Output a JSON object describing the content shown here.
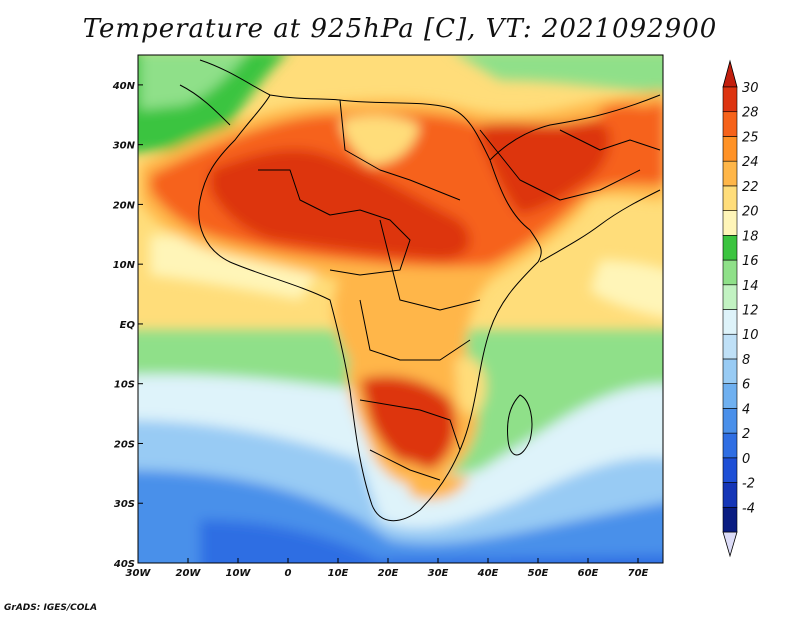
{
  "title": "Temperature at 925hPa [C], VT: 2021092900",
  "credit": "GrADS: IGES/COLA",
  "map": {
    "lon_range": [
      -30,
      75
    ],
    "lat_range": [
      -40,
      45
    ],
    "lon_ticks": [
      {
        "value": -30,
        "label": "30W"
      },
      {
        "value": -20,
        "label": "20W"
      },
      {
        "value": -10,
        "label": "10W"
      },
      {
        "value": 0,
        "label": "0"
      },
      {
        "value": 10,
        "label": "10E"
      },
      {
        "value": 20,
        "label": "20E"
      },
      {
        "value": 30,
        "label": "30E"
      },
      {
        "value": 40,
        "label": "40E"
      },
      {
        "value": 50,
        "label": "50E"
      },
      {
        "value": 60,
        "label": "60E"
      },
      {
        "value": 70,
        "label": "70E"
      }
    ],
    "lat_ticks": [
      {
        "value": 40,
        "label": "40N"
      },
      {
        "value": 30,
        "label": "30N"
      },
      {
        "value": 20,
        "label": "20N"
      },
      {
        "value": 10,
        "label": "10N"
      },
      {
        "value": 0,
        "label": "EQ"
      },
      {
        "value": -10,
        "label": "10S"
      },
      {
        "value": -20,
        "label": "20S"
      },
      {
        "value": -30,
        "label": "30S"
      },
      {
        "value": -40,
        "label": "40S"
      }
    ]
  },
  "colorbar": {
    "levels": [
      {
        "label": "-4",
        "color": "#0a1d82"
      },
      {
        "label": "-2",
        "color": "#1536b7"
      },
      {
        "label": "0",
        "color": "#1e4fd6"
      },
      {
        "label": "2",
        "color": "#2f6ee3"
      },
      {
        "label": "4",
        "color": "#4a90ea"
      },
      {
        "label": "6",
        "color": "#6fb0f0"
      },
      {
        "label": "8",
        "color": "#98cbf4"
      },
      {
        "label": "10",
        "color": "#bfe0f7"
      },
      {
        "label": "12",
        "color": "#def3fa"
      },
      {
        "label": "14",
        "color": "#c2f2c2"
      },
      {
        "label": "16",
        "color": "#8fe089"
      },
      {
        "label": "18",
        "color": "#3bc43f"
      },
      {
        "label": "20",
        "color": "#fff5b8"
      },
      {
        "label": "22",
        "color": "#ffdd7a"
      },
      {
        "label": "24",
        "color": "#ffb648"
      },
      {
        "label": "25",
        "color": "#ff9226"
      },
      {
        "label": "28",
        "color": "#f6621a"
      },
      {
        "label": "30",
        "color": "#dd3411"
      }
    ],
    "top_color": "#c21f0e",
    "bottom_color": "#dcdcf7"
  }
}
